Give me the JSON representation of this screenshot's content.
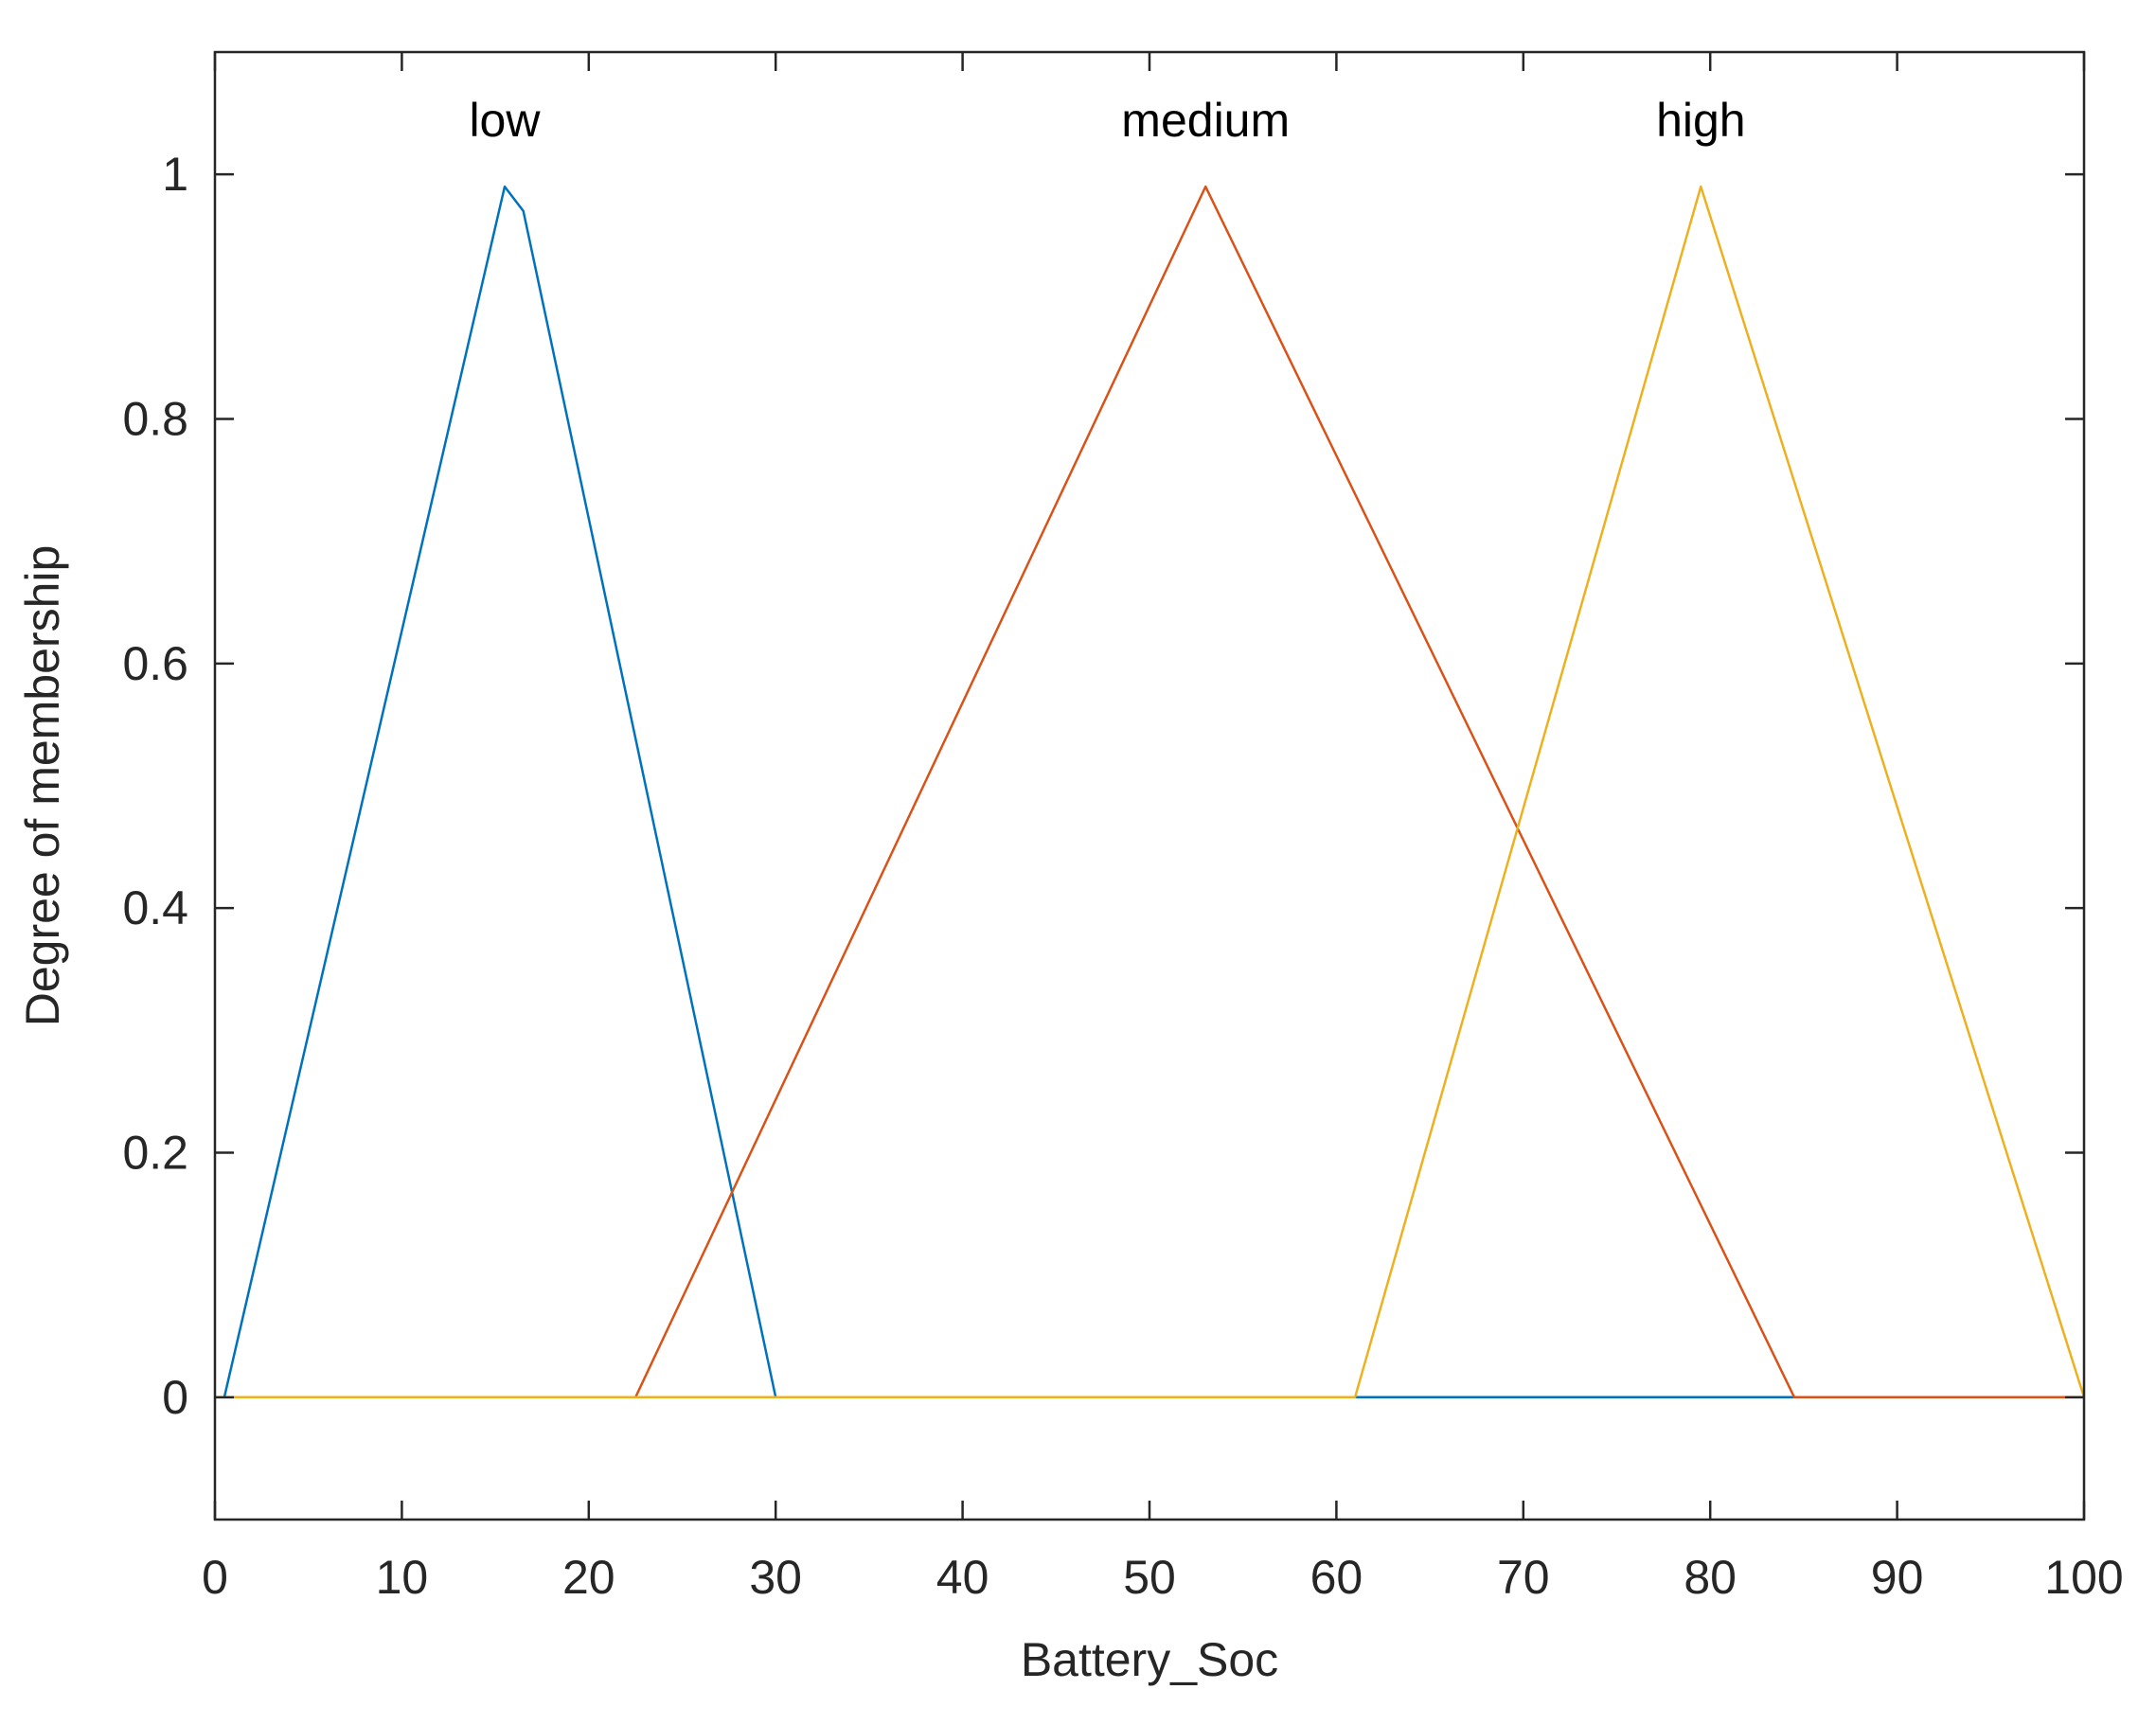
{
  "chart_data": {
    "type": "line",
    "title": "",
    "xlabel": "Battery_Soc",
    "ylabel": "Degree of membership",
    "xlim": [
      0,
      100
    ],
    "ylim": [
      -0.1,
      1.1
    ],
    "xticks": [
      0,
      10,
      20,
      30,
      40,
      50,
      60,
      70,
      80,
      90,
      100
    ],
    "yticks": [
      0,
      0.2,
      0.4,
      0.6,
      0.8,
      1
    ],
    "ytick_labels": [
      "0",
      "0.2",
      "0.4",
      "0.6",
      "0.8",
      "1"
    ],
    "grid": false,
    "series": [
      {
        "name": "low",
        "color": "#0072BD",
        "x": [
          0,
          0.5,
          15.5,
          16.5,
          30,
          100
        ],
        "y": [
          0,
          0,
          0.99,
          0.97,
          0,
          0
        ]
      },
      {
        "name": "medium",
        "color": "#D95319",
        "x": [
          0,
          22.5,
          53,
          84.5,
          100
        ],
        "y": [
          0,
          0,
          0.99,
          0,
          0
        ]
      },
      {
        "name": "high",
        "color": "#EDB120",
        "x": [
          0,
          61,
          79.5,
          100
        ],
        "y": [
          0,
          0,
          0.99,
          0
        ]
      }
    ],
    "annotations": [
      {
        "text": "low",
        "x": 15.5,
        "y": 1.045
      },
      {
        "text": "medium",
        "x": 53,
        "y": 1.045
      },
      {
        "text": "high",
        "x": 79.5,
        "y": 1.045
      }
    ]
  }
}
